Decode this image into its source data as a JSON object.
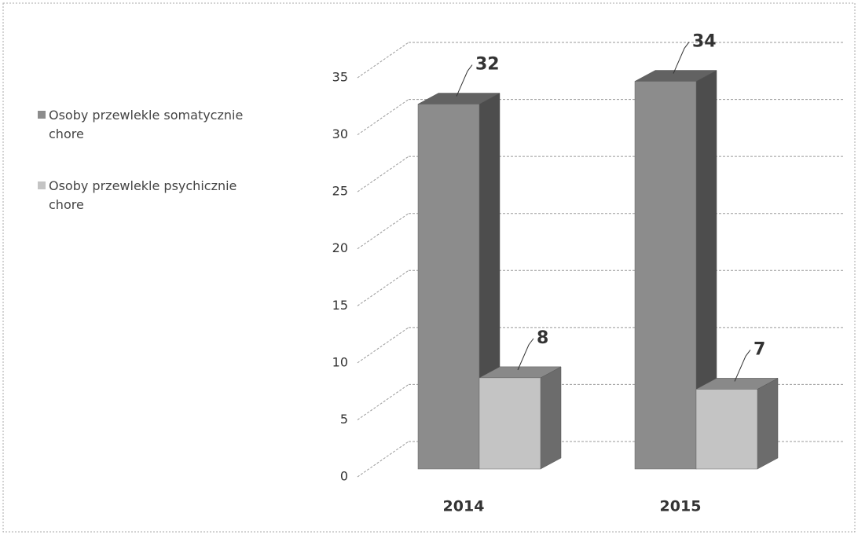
{
  "chart_data": {
    "type": "bar3d",
    "categories": [
      "2014",
      "2015"
    ],
    "series": [
      {
        "name": "Osoby przewlekle somatycznie chore",
        "color": "#8c8c8c",
        "values": [
          32,
          34
        ]
      },
      {
        "name": "Osoby przewlekle psychicznie chore",
        "color": "#c4c4c4",
        "values": [
          8,
          7
        ]
      }
    ],
    "ylim": [
      0,
      35
    ],
    "yticks": [
      0,
      5,
      10,
      15,
      20,
      25,
      30,
      35
    ],
    "grid": true,
    "legend": "left"
  }
}
